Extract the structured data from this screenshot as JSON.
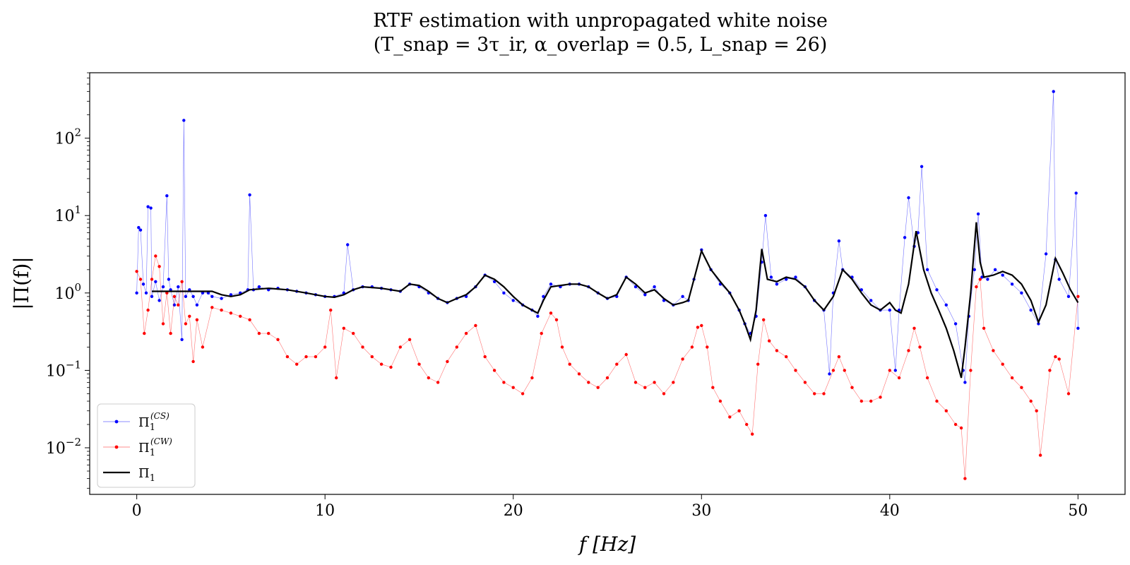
{
  "chart_data": {
    "type": "line",
    "title_line1": "RTF estimation with unpropagated white noise",
    "title_line2": "(T_snap = 3τ_ir,   α_overlap = 0.5,   L_snap = 26)",
    "xlabel": "f [Hz]",
    "ylabel": "|Π(f)|",
    "xlim": [
      -2.5,
      52.5
    ],
    "ylim": [
      0.0025,
      700
    ],
    "yscale": "log",
    "grid": false,
    "legend_position": "lower-left",
    "xticks": [
      0,
      10,
      20,
      30,
      40,
      50
    ],
    "xtick_labels": [
      "0",
      "10",
      "20",
      "30",
      "40",
      "50"
    ],
    "yticks": [
      0.01,
      0.1,
      1,
      10,
      100
    ],
    "ytick_labels": [
      {
        "base": "10",
        "exp": "−2"
      },
      {
        "base": "10",
        "exp": "−1"
      },
      {
        "base": "10",
        "exp": "0"
      },
      {
        "base": "10",
        "exp": "1"
      },
      {
        "base": "10",
        "exp": "2"
      }
    ],
    "series": [
      {
        "name": "Π1(CS)",
        "label_base": "Π",
        "label_sub": "1",
        "label_sup": "(CS)",
        "color": "#0000ff",
        "style": "line-markers",
        "x": [
          0,
          0.1,
          0.2,
          0.35,
          0.5,
          0.6,
          0.75,
          0.8,
          1.0,
          1.2,
          1.4,
          1.6,
          1.7,
          1.8,
          2.0,
          2.2,
          2.4,
          2.5,
          2.6,
          2.8,
          3.0,
          3.2,
          3.5,
          3.8,
          4.0,
          4.5,
          5.0,
          5.5,
          5.9,
          6.0,
          6.2,
          6.5,
          7.0,
          7.5,
          8.0,
          8.5,
          9.0,
          9.5,
          10.0,
          10.5,
          11.0,
          11.2,
          11.5,
          12.0,
          12.5,
          13.0,
          13.5,
          14.0,
          14.5,
          15.0,
          15.5,
          16.0,
          16.5,
          17.0,
          17.5,
          18.0,
          18.5,
          19.0,
          19.5,
          20.0,
          20.5,
          21.0,
          21.3,
          21.6,
          22.0,
          22.5,
          23.0,
          23.5,
          24.0,
          24.5,
          25.0,
          25.5,
          26.0,
          26.5,
          27.0,
          27.5,
          28.0,
          28.5,
          29.0,
          29.3,
          29.6,
          30.0,
          30.5,
          31.0,
          31.5,
          32.0,
          32.3,
          32.6,
          32.9,
          33.2,
          33.4,
          33.7,
          34.0,
          34.5,
          35.0,
          35.5,
          36.0,
          36.5,
          36.8,
          37.0,
          37.3,
          37.5,
          38.0,
          38.5,
          39.0,
          39.5,
          40.0,
          40.3,
          40.5,
          40.8,
          41.0,
          41.3,
          41.5,
          41.7,
          42.0,
          42.5,
          43.0,
          43.5,
          43.9,
          44.0,
          44.2,
          44.5,
          44.7,
          44.9,
          45.2,
          45.6,
          46.0,
          46.5,
          47.0,
          47.5,
          47.9,
          48.3,
          48.7,
          48.8,
          49.0,
          49.5,
          49.9,
          50.0
        ],
        "values": [
          1.0,
          7.0,
          6.5,
          1.3,
          1.0,
          13.0,
          12.5,
          0.9,
          1.4,
          0.8,
          1.2,
          18.0,
          1.5,
          1.1,
          0.7,
          1.2,
          0.25,
          170.0,
          0.9,
          1.1,
          0.9,
          0.7,
          1.0,
          1.0,
          0.9,
          0.85,
          0.95,
          1.0,
          1.1,
          18.5,
          1.1,
          1.2,
          1.1,
          1.15,
          1.1,
          1.05,
          1.0,
          0.95,
          0.9,
          0.9,
          1.0,
          4.2,
          1.1,
          1.2,
          1.2,
          1.15,
          1.1,
          1.05,
          1.3,
          1.2,
          1.0,
          0.85,
          0.75,
          0.85,
          0.9,
          1.2,
          1.7,
          1.4,
          1.0,
          0.8,
          0.7,
          0.6,
          0.5,
          0.9,
          1.3,
          1.2,
          1.3,
          1.3,
          1.2,
          1.0,
          0.85,
          0.9,
          1.6,
          1.2,
          0.95,
          1.2,
          0.8,
          0.7,
          0.9,
          0.8,
          1.5,
          3.6,
          2.0,
          1.3,
          1.0,
          0.6,
          0.4,
          0.3,
          0.5,
          2.5,
          10.0,
          1.6,
          1.3,
          1.5,
          1.6,
          1.2,
          0.8,
          0.6,
          0.09,
          1.0,
          4.7,
          2.0,
          1.6,
          1.1,
          0.8,
          0.6,
          0.6,
          0.1,
          0.6,
          5.2,
          17.0,
          4.0,
          6.0,
          43.0,
          2.0,
          1.1,
          0.7,
          0.4,
          0.1,
          0.07,
          0.5,
          2.0,
          10.5,
          1.6,
          1.5,
          2.0,
          1.7,
          1.3,
          1.0,
          0.6,
          0.4,
          3.2,
          400.0,
          2.7,
          1.5,
          0.9,
          19.5,
          0.35
        ]
      },
      {
        "name": "Π1(CW)",
        "label_base": "Π",
        "label_sub": "1",
        "label_sup": "(CW)",
        "color": "#ff0000",
        "style": "line-markers",
        "x": [
          0,
          0.2,
          0.4,
          0.6,
          0.8,
          1.0,
          1.2,
          1.4,
          1.6,
          1.8,
          2.0,
          2.2,
          2.4,
          2.6,
          2.8,
          3.0,
          3.2,
          3.5,
          4.0,
          4.5,
          5.0,
          5.5,
          6.0,
          6.5,
          7.0,
          7.5,
          8.0,
          8.5,
          9.0,
          9.5,
          10.0,
          10.3,
          10.6,
          11.0,
          11.5,
          12.0,
          12.5,
          13.0,
          13.5,
          14.0,
          14.5,
          15.0,
          15.5,
          16.0,
          16.5,
          17.0,
          17.5,
          18.0,
          18.5,
          19.0,
          19.5,
          20.0,
          20.5,
          21.0,
          21.5,
          22.0,
          22.3,
          22.6,
          23.0,
          23.5,
          24.0,
          24.5,
          25.0,
          25.5,
          26.0,
          26.5,
          27.0,
          27.5,
          28.0,
          28.5,
          29.0,
          29.5,
          29.8,
          30.0,
          30.3,
          30.6,
          31.0,
          31.5,
          32.0,
          32.4,
          32.7,
          33.0,
          33.3,
          33.6,
          34.0,
          34.5,
          35.0,
          35.5,
          36.0,
          36.5,
          37.0,
          37.3,
          37.6,
          38.0,
          38.5,
          39.0,
          39.5,
          40.0,
          40.5,
          41.0,
          41.3,
          41.6,
          42.0,
          42.5,
          43.0,
          43.5,
          43.8,
          44.0,
          44.3,
          44.6,
          44.8,
          45.0,
          45.5,
          46.0,
          46.5,
          47.0,
          47.5,
          47.8,
          48.0,
          48.5,
          48.8,
          49.0,
          49.5,
          50.0
        ],
        "values": [
          1.9,
          1.5,
          0.3,
          0.6,
          1.5,
          3.0,
          2.2,
          0.4,
          1.0,
          0.3,
          0.9,
          0.7,
          1.4,
          0.4,
          0.5,
          0.13,
          0.45,
          0.2,
          0.65,
          0.6,
          0.55,
          0.5,
          0.45,
          0.3,
          0.3,
          0.25,
          0.15,
          0.12,
          0.15,
          0.15,
          0.2,
          0.6,
          0.08,
          0.35,
          0.3,
          0.2,
          0.15,
          0.12,
          0.11,
          0.2,
          0.25,
          0.12,
          0.08,
          0.07,
          0.13,
          0.2,
          0.3,
          0.38,
          0.15,
          0.1,
          0.07,
          0.06,
          0.05,
          0.08,
          0.3,
          0.55,
          0.45,
          0.2,
          0.12,
          0.09,
          0.07,
          0.06,
          0.08,
          0.12,
          0.16,
          0.07,
          0.06,
          0.07,
          0.05,
          0.07,
          0.14,
          0.2,
          0.36,
          0.38,
          0.2,
          0.06,
          0.04,
          0.025,
          0.03,
          0.02,
          0.015,
          0.12,
          0.45,
          0.24,
          0.18,
          0.15,
          0.1,
          0.07,
          0.05,
          0.05,
          0.1,
          0.15,
          0.1,
          0.06,
          0.04,
          0.04,
          0.045,
          0.1,
          0.08,
          0.18,
          0.35,
          0.2,
          0.08,
          0.04,
          0.03,
          0.02,
          0.018,
          0.004,
          0.1,
          1.2,
          1.5,
          0.35,
          0.18,
          0.12,
          0.08,
          0.06,
          0.04,
          0.03,
          0.008,
          0.1,
          0.15,
          0.14,
          0.05,
          0.9
        ]
      },
      {
        "name": "Π1",
        "label_base": "Π",
        "label_sub": "1",
        "label_sup": "",
        "color": "#000000",
        "style": "line",
        "x": [
          0.8,
          2.0,
          3.0,
          4.0,
          4.5,
          5.0,
          5.5,
          6.0,
          7.0,
          8.0,
          9.0,
          10.0,
          10.5,
          11.0,
          11.5,
          12.0,
          13.0,
          13.5,
          14.0,
          14.5,
          15.0,
          15.5,
          16.0,
          16.5,
          17.0,
          17.5,
          18.0,
          18.5,
          19.0,
          19.5,
          20.0,
          20.5,
          21.0,
          21.3,
          21.6,
          22.0,
          22.5,
          23.0,
          23.5,
          24.0,
          24.5,
          25.0,
          25.5,
          26.0,
          26.5,
          27.0,
          27.5,
          28.0,
          28.5,
          29.0,
          29.3,
          29.6,
          30.0,
          30.5,
          31.0,
          31.5,
          32.0,
          32.3,
          32.6,
          32.9,
          33.2,
          33.5,
          34.0,
          34.5,
          35.0,
          35.5,
          36.0,
          36.5,
          37.0,
          37.5,
          38.0,
          38.5,
          39.0,
          39.5,
          40.0,
          40.3,
          40.6,
          41.0,
          41.4,
          41.8,
          42.2,
          42.6,
          43.0,
          43.4,
          43.8,
          44.0,
          44.3,
          44.6,
          44.8,
          45.0,
          45.5,
          46.0,
          46.5,
          47.0,
          47.5,
          47.9,
          48.3,
          48.8,
          49.2,
          49.6,
          50.0
        ],
        "values": [
          1.05,
          1.05,
          1.05,
          1.05,
          0.95,
          0.9,
          0.95,
          1.1,
          1.15,
          1.1,
          1.0,
          0.9,
          0.88,
          0.95,
          1.1,
          1.2,
          1.15,
          1.1,
          1.05,
          1.3,
          1.25,
          1.05,
          0.85,
          0.75,
          0.85,
          0.95,
          1.2,
          1.7,
          1.5,
          1.2,
          0.9,
          0.7,
          0.6,
          0.55,
          0.8,
          1.2,
          1.25,
          1.3,
          1.3,
          1.2,
          1.0,
          0.85,
          0.95,
          1.6,
          1.3,
          1.0,
          1.1,
          0.85,
          0.7,
          0.75,
          0.8,
          1.5,
          3.5,
          2.0,
          1.4,
          1.0,
          0.6,
          0.4,
          0.25,
          0.6,
          3.7,
          1.5,
          1.4,
          1.6,
          1.5,
          1.2,
          0.8,
          0.6,
          0.9,
          2.0,
          1.5,
          1.0,
          0.7,
          0.6,
          0.75,
          0.6,
          0.55,
          1.3,
          6.3,
          2.0,
          1.0,
          0.6,
          0.35,
          0.18,
          0.08,
          0.2,
          1.0,
          8.2,
          2.5,
          1.6,
          1.7,
          1.9,
          1.7,
          1.3,
          0.8,
          0.42,
          0.7,
          2.8,
          1.8,
          1.1,
          0.75
        ]
      }
    ]
  }
}
